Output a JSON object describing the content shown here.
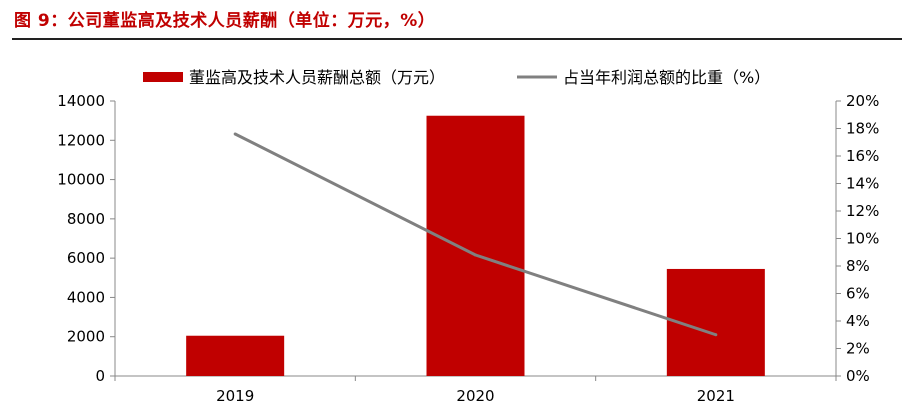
{
  "figure_title": "图 9：公司董监高及技术人员薪酬（单位：万元，%）",
  "chart_data": {
    "type": "bar",
    "categories": [
      "2019",
      "2020",
      "2021"
    ],
    "series": [
      {
        "name": "董监高及技术人员薪酬总额（万元）",
        "type": "bar",
        "axis": "left",
        "color": "#c00000",
        "values": [
          2050,
          13250,
          5450
        ]
      },
      {
        "name": "占当年利润总额的比重（%）",
        "type": "line",
        "axis": "right",
        "color": "#808080",
        "values": [
          17.6,
          8.8,
          3.0
        ]
      }
    ],
    "y_left": {
      "min": 0,
      "max": 14000,
      "ticks": [
        "0",
        "2000",
        "4000",
        "6000",
        "8000",
        "10000",
        "12000",
        "14000"
      ]
    },
    "y_right": {
      "min": 0,
      "max": 20,
      "ticks": [
        "0%",
        "2%",
        "4%",
        "6%",
        "8%",
        "10%",
        "12%",
        "14%",
        "16%",
        "18%",
        "20%"
      ]
    },
    "grid": false,
    "legend_position": "top"
  }
}
